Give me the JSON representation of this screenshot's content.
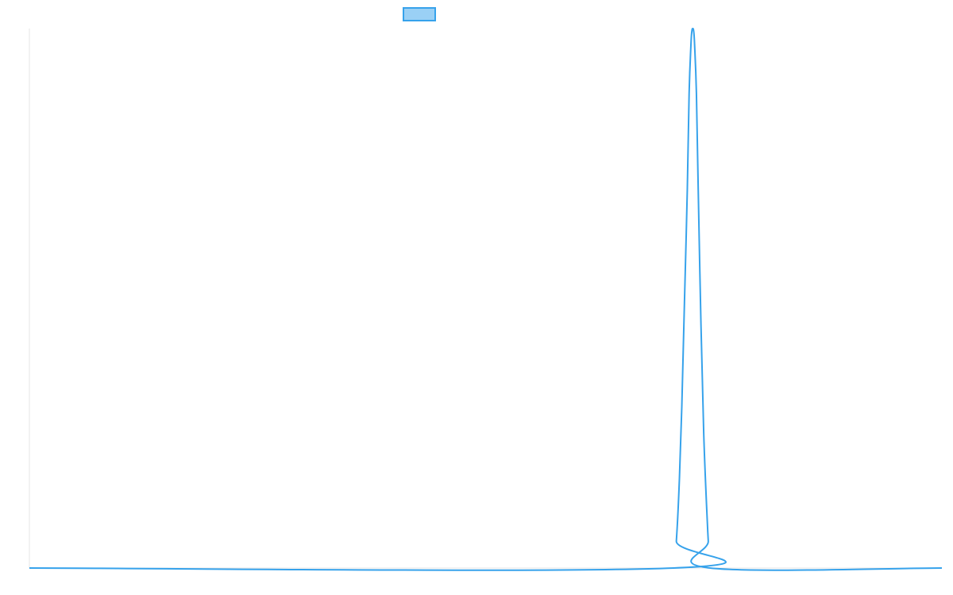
{
  "chart_data": {
    "type": "line",
    "title": "",
    "xlabel": "",
    "ylabel": "",
    "legend": {
      "placement": "top-center",
      "entries": [
        {
          "name": "",
          "swatch_fill": "#9ad0f5",
          "swatch_stroke": "#36a2eb"
        }
      ]
    },
    "grid": false,
    "x_range": [
      0,
      100
    ],
    "y_range": [
      0,
      1
    ],
    "series": [
      {
        "name": "",
        "color": "#36a2eb",
        "points": [
          [
            0,
            0
          ],
          [
            70.6,
            0
          ],
          [
            70.9,
            0.05
          ],
          [
            71.2,
            0.15
          ],
          [
            71.5,
            0.3
          ],
          [
            71.8,
            0.5
          ],
          [
            72.1,
            0.7
          ],
          [
            72.3,
            0.88
          ],
          [
            72.5,
            0.97
          ],
          [
            72.6,
            0.995
          ],
          [
            72.7,
            1.0
          ],
          [
            72.8,
            0.995
          ],
          [
            72.9,
            0.97
          ],
          [
            73.1,
            0.88
          ],
          [
            73.3,
            0.7
          ],
          [
            73.6,
            0.45
          ],
          [
            73.9,
            0.25
          ],
          [
            74.2,
            0.12
          ],
          [
            74.4,
            0.05
          ],
          [
            74.6,
            0
          ],
          [
            100,
            0
          ]
        ]
      }
    ]
  },
  "colors": {
    "series": "#36a2eb",
    "legend_fill": "#9ad0f5",
    "axis": "#e6e6e6"
  }
}
